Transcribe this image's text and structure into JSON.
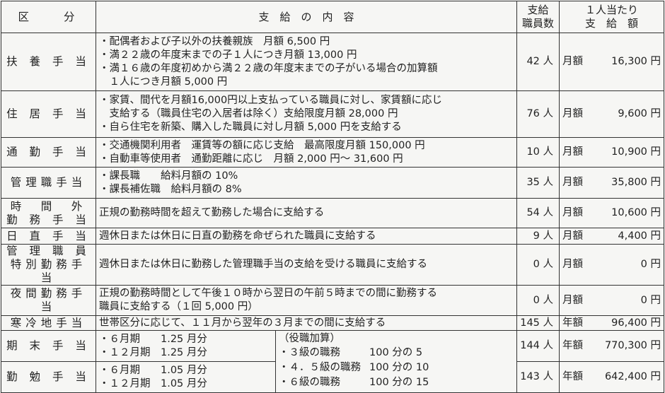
{
  "header": {
    "category": "区　　分",
    "content": "支　給　の　内　容",
    "count_line1": "支給",
    "count_line2": "職員数",
    "amount_line1": "１人当たり",
    "amount_line2": "支　給　額"
  },
  "rows": [
    {
      "category": [
        "扶 養 手 当"
      ],
      "lines": [
        "・配偶者および子以外の扶養親族　月額 6,500 円",
        "・満２２歳の年度末までの子１人につき月額 13,000 円",
        "・満１６歳の年度初めから満２２歳の年度末までの子がいる場合の加算額",
        "　１人につき月額 5,000 円"
      ],
      "count": "42 人",
      "amount_label": "月額",
      "amount": "16,300 円"
    },
    {
      "category": [
        "住 居 手 当"
      ],
      "lines": [
        "・家賃、間代を月額16,000円以上支払っている職員に対し、家賃額に応じ",
        "　支給する（職員住宅の入居者は除く）支給限度月額 28,000 円",
        "・自ら住宅を新築、購入した職員に対し月額 5,000 円を支給する"
      ],
      "count": "76 人",
      "amount_label": "月額",
      "amount": "9,600 円"
    },
    {
      "category": [
        "通 勤 手 当"
      ],
      "lines": [
        "・交通機関利用者　運賃等の額に応じ支給　最高限度月額 150,000 円",
        "・自動車等使用者　通勤距離に応じ　月額 2,000 円～ 31,600 円"
      ],
      "count": "10 人",
      "amount_label": "月額",
      "amount": "10,900 円"
    },
    {
      "category": [
        "管理職手当"
      ],
      "lines": [
        "・課長職　　給料月額の 10%",
        "・課長補佐職　給料月額の 8%"
      ],
      "count": "35 人",
      "amount_label": "月額",
      "amount": "35,800 円"
    },
    {
      "category": [
        "時　間　外",
        "勤 務 手 当"
      ],
      "lines": [
        "正規の勤務時間を超えて勤務した場合に支給する"
      ],
      "count": "54 人",
      "amount_label": "月額",
      "amount": "10,600 円"
    },
    {
      "category": [
        "日 直 手 当"
      ],
      "lines": [
        "週休日または休日に日直の勤務を命ぜられた職員に支給する"
      ],
      "count": "9 人",
      "amount_label": "月額",
      "amount": "4,400 円"
    },
    {
      "category": [
        "管 理 職 員",
        "特別勤務手当"
      ],
      "lines": [
        "週休日または休日に勤務した管理職手当の支給を受ける職員に支給する"
      ],
      "count": "0 人",
      "amount_label": "月額",
      "amount": "0 円"
    },
    {
      "category": [
        "夜間勤務手当"
      ],
      "lines": [
        "正規の勤務時間として午後１０時から翌日の午前５時までの間に勤務する",
        "職員に支給する（１回 5,000 円）"
      ],
      "count": "0 人",
      "amount_label": "月額",
      "amount": "0 円"
    },
    {
      "category": [
        "寒冷地手当"
      ],
      "lines": [
        "世帯区分に応じて、１１月から翌年の３月までの間に支給する"
      ],
      "count": "145 人",
      "amount_label": "年額",
      "amount": "96,400 円"
    }
  ],
  "bonus": {
    "kimatsu": {
      "category": "期 末 手 当",
      "lines": [
        "・６月期　　1.25 月分",
        "・１２月期　1.25 月分"
      ],
      "count": "144 人",
      "amount_label": "年額",
      "amount": "770,300 円"
    },
    "kinben": {
      "category": "勤 勉 手 当",
      "lines": [
        "・６月期　　1.05 月分",
        "・１２月期　1.05 月分"
      ],
      "count": "143 人",
      "amount_label": "年額",
      "amount": "642,400 円"
    },
    "addition": {
      "title": "（役職加算）",
      "items": [
        {
          "grade": "・３級の職務",
          "rate": "100 分の 5"
        },
        {
          "grade": "・４．５級の職務",
          "rate": "100 分の 10"
        },
        {
          "grade": "・６級の職務",
          "rate": "100 分の 15"
        }
      ]
    }
  }
}
